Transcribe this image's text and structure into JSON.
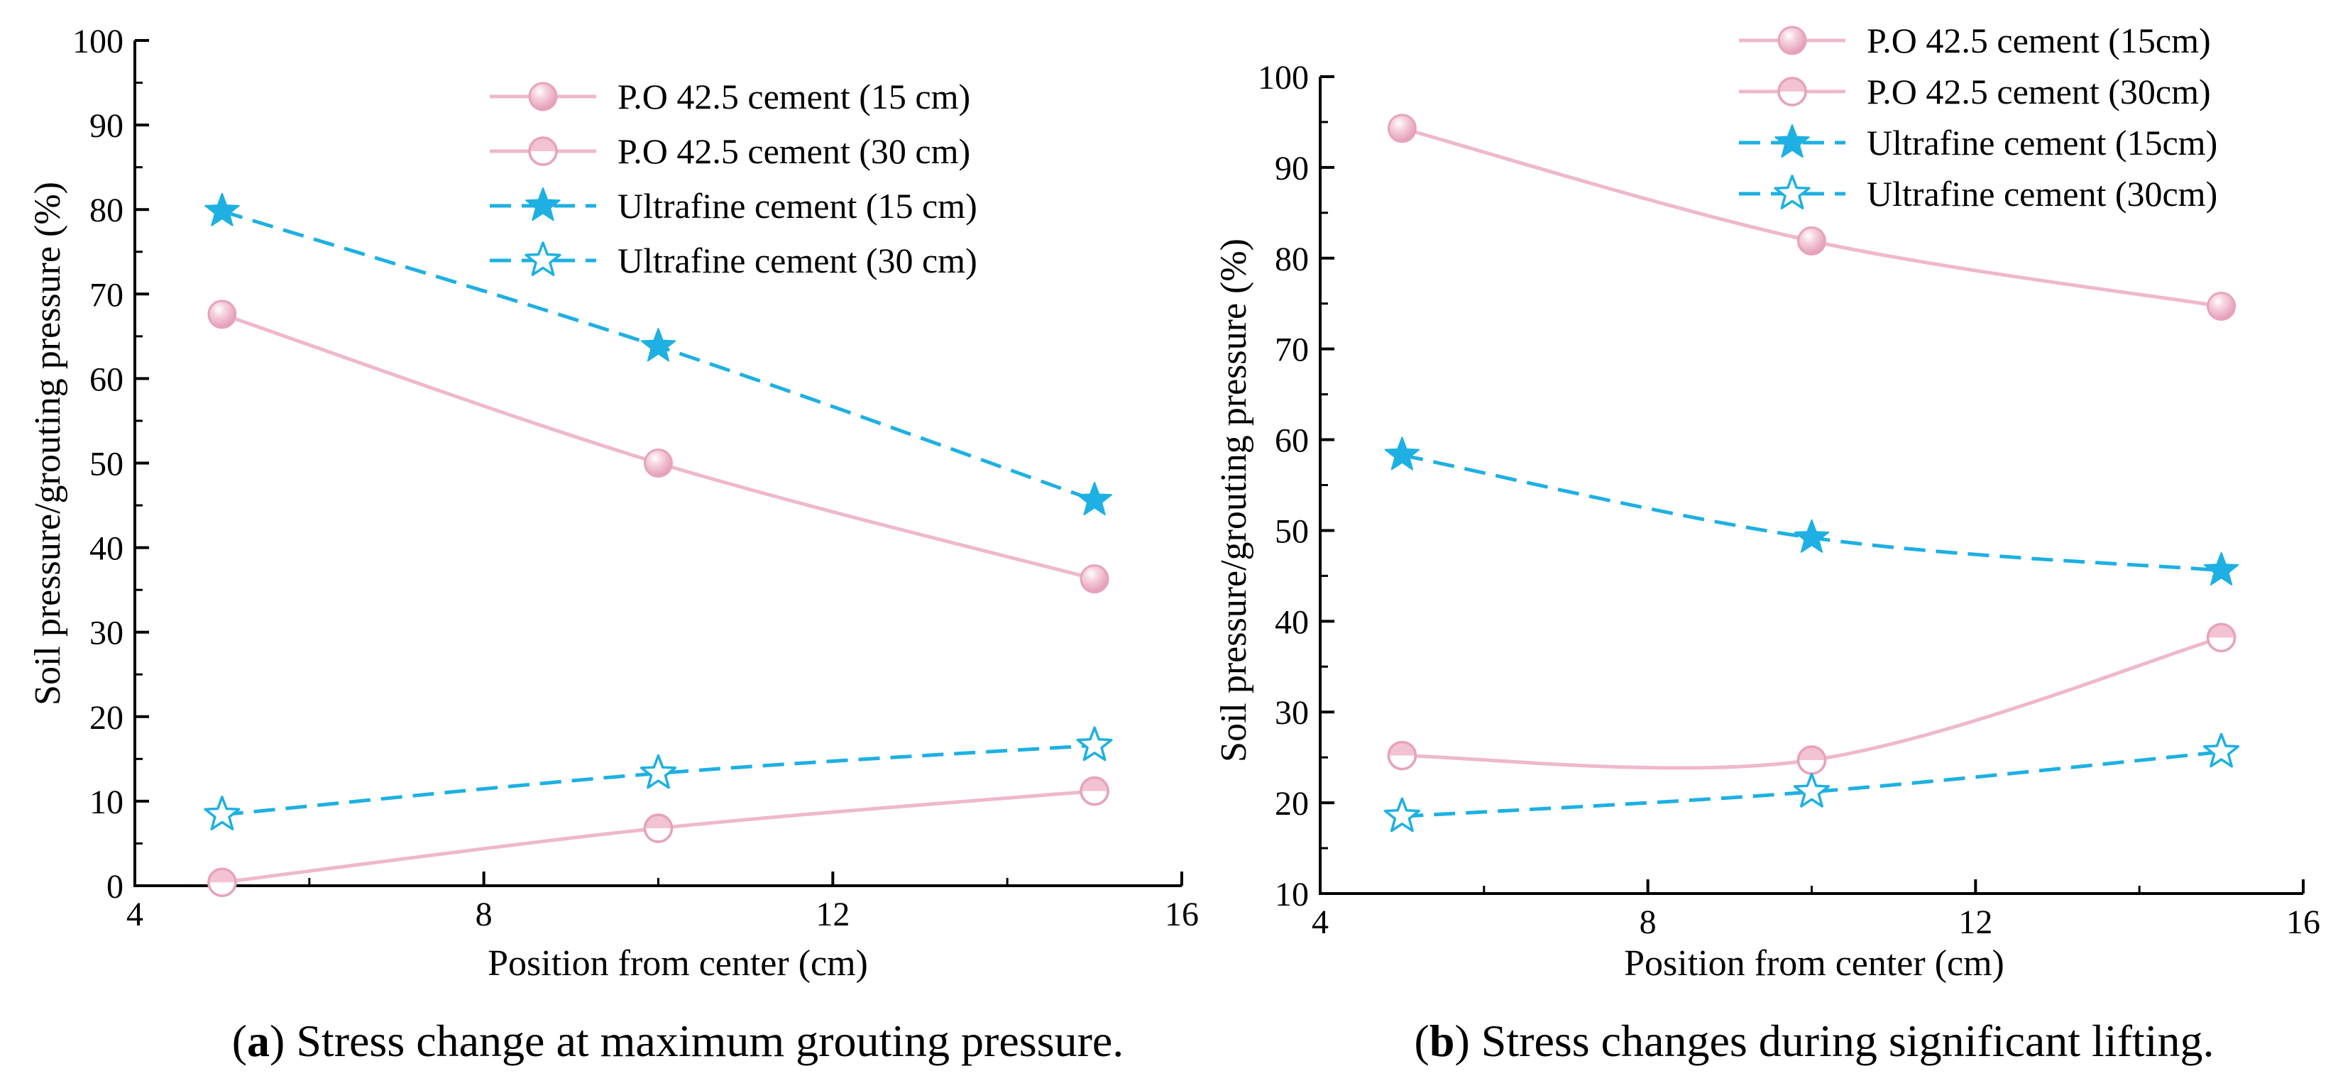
{
  "chart_data": [
    {
      "type": "line",
      "panel_label": "a",
      "caption": "Stress change at maximum grouting pressure.",
      "title": "",
      "xlabel": "Position from center (cm)",
      "ylabel": "Soil pressure/grouting pressure (%)",
      "xlim": [
        4,
        16
      ],
      "ylim": [
        0,
        100
      ],
      "xticks": [
        4,
        8,
        12,
        16
      ],
      "yticks": [
        0,
        10,
        20,
        30,
        40,
        50,
        60,
        70,
        80,
        90,
        100
      ],
      "grid": false,
      "legend_position": "top-right",
      "x": [
        5,
        10,
        15
      ],
      "series": [
        {
          "name": "P.O 42.5 cement (15 cm)",
          "values": [
            67.6,
            50.0,
            36.3
          ],
          "color": "#efb8cc",
          "marker": "filled-circle",
          "dash": "solid"
        },
        {
          "name": "P.O 42.5 cement (30 cm)",
          "values": [
            0.4,
            6.8,
            11.2
          ],
          "color": "#efb8cc",
          "marker": "half-circle",
          "dash": "solid"
        },
        {
          "name": "Ultrafine cement (15 cm)",
          "values": [
            79.8,
            63.8,
            45.6
          ],
          "color": "#1eb0e2",
          "marker": "filled-star",
          "dash": "dashed"
        },
        {
          "name": "Ultrafine cement (30 cm)",
          "values": [
            8.4,
            13.3,
            16.6
          ],
          "color": "#1eb0e2",
          "marker": "open-star",
          "dash": "dashed"
        }
      ]
    },
    {
      "type": "line",
      "panel_label": "b",
      "caption": "Stress changes during significant lifting.",
      "title": "",
      "xlabel": "Position from center (cm)",
      "ylabel": "Soil pressure/grouting pressure (%)",
      "xlim": [
        4,
        16
      ],
      "ylim": [
        10,
        100
      ],
      "xticks": [
        4,
        8,
        12,
        16
      ],
      "yticks": [
        10,
        20,
        30,
        40,
        50,
        60,
        70,
        80,
        90,
        100
      ],
      "grid": false,
      "legend_position": "top-right",
      "x": [
        5,
        10,
        15
      ],
      "series": [
        {
          "name": "P.O 42.5 cement (15cm)",
          "values": [
            94.3,
            81.9,
            74.7
          ],
          "color": "#efb8cc",
          "marker": "filled-circle",
          "dash": "solid"
        },
        {
          "name": "P.O 42.5 cement (30cm)",
          "values": [
            25.2,
            24.7,
            38.2
          ],
          "color": "#efb8cc",
          "marker": "half-circle",
          "dash": "solid"
        },
        {
          "name": "Ultrafine cement (15cm)",
          "values": [
            58.3,
            49.2,
            45.6
          ],
          "color": "#1eb0e2",
          "marker": "filled-star",
          "dash": "dashed"
        },
        {
          "name": "Ultrafine cement (30cm)",
          "values": [
            18.5,
            21.2,
            25.6
          ],
          "color": "#1eb0e2",
          "marker": "open-star",
          "dash": "dashed"
        }
      ]
    }
  ]
}
